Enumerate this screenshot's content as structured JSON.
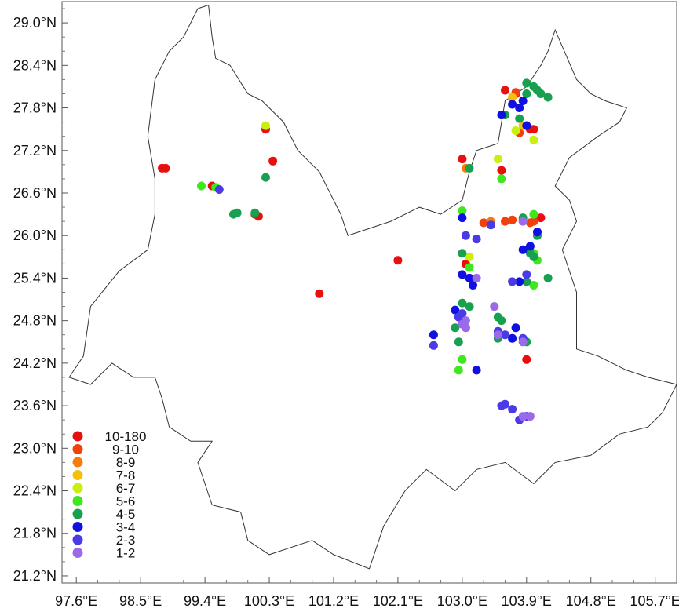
{
  "chart_data": {
    "type": "scatter",
    "title": "",
    "xlabel": "",
    "ylabel": "",
    "xlim": [
      97.4,
      106.0
    ],
    "ylim": [
      21.1,
      29.3
    ],
    "grid": false,
    "legend_position": "bottom-left",
    "x_ticks": [
      {
        "value": 97.6,
        "label": "97.6°E"
      },
      {
        "value": 98.5,
        "label": "98.5°E"
      },
      {
        "value": 99.4,
        "label": "99.4°E"
      },
      {
        "value": 100.3,
        "label": "100.3°E"
      },
      {
        "value": 101.2,
        "label": "101.2°E"
      },
      {
        "value": 102.1,
        "label": "102.1°E"
      },
      {
        "value": 103.0,
        "label": "103.0°E"
      },
      {
        "value": 103.9,
        "label": "103.9°E"
      },
      {
        "value": 104.8,
        "label": "104.8°E"
      },
      {
        "value": 105.7,
        "label": "105.7°E"
      }
    ],
    "y_ticks": [
      {
        "value": 29.0,
        "label": "29.0°N"
      },
      {
        "value": 28.4,
        "label": "28.4°N"
      },
      {
        "value": 27.8,
        "label": "27.8°N"
      },
      {
        "value": 27.2,
        "label": "27.2°N"
      },
      {
        "value": 26.6,
        "label": "26.6°N"
      },
      {
        "value": 26.0,
        "label": "26.0°N"
      },
      {
        "value": 25.4,
        "label": "25.4°N"
      },
      {
        "value": 24.8,
        "label": "24.8°N"
      },
      {
        "value": 24.2,
        "label": "24.2°N"
      },
      {
        "value": 23.6,
        "label": "23.6°N"
      },
      {
        "value": 23.0,
        "label": "23.0°N"
      },
      {
        "value": 22.4,
        "label": "22.4°N"
      },
      {
        "value": 21.8,
        "label": "21.8°N"
      },
      {
        "value": 21.2,
        "label": "21.2°N"
      }
    ],
    "boundary": [
      [
        97.5,
        24.0
      ],
      [
        97.7,
        24.3
      ],
      [
        97.8,
        25.0
      ],
      [
        98.2,
        25.5
      ],
      [
        98.6,
        25.8
      ],
      [
        98.7,
        26.3
      ],
      [
        98.7,
        26.8
      ],
      [
        98.6,
        27.4
      ],
      [
        98.7,
        28.2
      ],
      [
        98.9,
        28.6
      ],
      [
        99.1,
        28.8
      ],
      [
        99.3,
        29.2
      ],
      [
        99.45,
        29.25
      ],
      [
        99.5,
        28.8
      ],
      [
        99.55,
        28.5
      ],
      [
        99.75,
        28.4
      ],
      [
        100.0,
        28.0
      ],
      [
        100.2,
        27.9
      ],
      [
        100.5,
        27.6
      ],
      [
        100.7,
        27.2
      ],
      [
        101.0,
        26.9
      ],
      [
        101.3,
        26.3
      ],
      [
        101.4,
        26.0
      ],
      [
        102.0,
        26.2
      ],
      [
        102.4,
        26.4
      ],
      [
        102.7,
        26.3
      ],
      [
        103.0,
        26.5
      ],
      [
        103.1,
        26.9
      ],
      [
        103.2,
        27.2
      ],
      [
        103.5,
        27.3
      ],
      [
        103.6,
        27.9
      ],
      [
        103.9,
        28.1
      ],
      [
        104.1,
        28.4
      ],
      [
        104.2,
        28.6
      ],
      [
        104.3,
        28.9
      ],
      [
        104.6,
        28.2
      ],
      [
        104.8,
        28.0
      ],
      [
        105.0,
        27.9
      ],
      [
        105.3,
        27.8
      ],
      [
        105.2,
        27.6
      ],
      [
        104.9,
        27.4
      ],
      [
        104.5,
        27.1
      ],
      [
        104.3,
        26.7
      ],
      [
        104.5,
        26.5
      ],
      [
        104.6,
        26.2
      ],
      [
        104.4,
        25.8
      ],
      [
        104.5,
        25.5
      ],
      [
        104.6,
        25.2
      ],
      [
        104.6,
        24.8
      ],
      [
        104.6,
        24.4
      ],
      [
        104.9,
        24.3
      ],
      [
        105.3,
        24.1
      ],
      [
        105.6,
        24.0
      ],
      [
        106.0,
        23.9
      ],
      [
        105.8,
        23.5
      ],
      [
        105.6,
        23.3
      ],
      [
        105.2,
        23.2
      ],
      [
        104.8,
        22.9
      ],
      [
        104.3,
        22.8
      ],
      [
        104.0,
        22.5
      ],
      [
        103.6,
        22.8
      ],
      [
        103.2,
        22.7
      ],
      [
        102.9,
        22.4
      ],
      [
        102.5,
        22.7
      ],
      [
        102.2,
        22.4
      ],
      [
        101.9,
        21.9
      ],
      [
        101.8,
        21.6
      ],
      [
        101.7,
        21.3
      ],
      [
        101.2,
        21.5
      ],
      [
        100.9,
        21.7
      ],
      [
        100.6,
        21.6
      ],
      [
        100.3,
        21.5
      ],
      [
        100.0,
        21.7
      ],
      [
        99.9,
        22.1
      ],
      [
        99.5,
        22.2
      ],
      [
        99.4,
        22.5
      ],
      [
        99.3,
        22.8
      ],
      [
        99.5,
        23.1
      ],
      [
        99.2,
        23.1
      ],
      [
        98.9,
        23.3
      ],
      [
        98.8,
        23.7
      ],
      [
        98.7,
        24.0
      ],
      [
        98.4,
        24.0
      ],
      [
        98.1,
        24.2
      ],
      [
        97.8,
        23.9
      ],
      [
        97.5,
        24.0
      ]
    ],
    "series": [
      {
        "name": "10-180",
        "color": "#e8100e",
        "points": [
          [
            98.8,
            26.95
          ],
          [
            98.85,
            26.95
          ],
          [
            100.25,
            27.5
          ],
          [
            100.35,
            27.05
          ],
          [
            99.5,
            26.7
          ],
          [
            100.1,
            26.3
          ],
          [
            100.15,
            26.27
          ],
          [
            101.0,
            25.18
          ],
          [
            102.1,
            25.65
          ],
          [
            103.0,
            27.08
          ],
          [
            103.55,
            26.92
          ],
          [
            103.95,
            27.5
          ],
          [
            103.9,
            27.55
          ],
          [
            104.0,
            27.5
          ],
          [
            103.6,
            28.05
          ],
          [
            103.75,
            28.0
          ],
          [
            103.05,
            25.6
          ],
          [
            103.9,
            24.25
          ],
          [
            104.1,
            26.25
          ]
        ]
      },
      {
        "name": "9-10",
        "color": "#f2400b",
        "points": [
          [
            103.75,
            28.02
          ],
          [
            103.8,
            27.45
          ],
          [
            103.6,
            26.2
          ],
          [
            103.7,
            26.22
          ],
          [
            103.3,
            26.18
          ],
          [
            104.0,
            26.2
          ],
          [
            103.95,
            26.18
          ]
        ]
      },
      {
        "name": "8-9",
        "color": "#f57c0a",
        "points": [
          [
            103.4,
            26.2
          ],
          [
            103.85,
            26.22
          ],
          [
            103.05,
            26.95
          ]
        ]
      },
      {
        "name": "7-8",
        "color": "#f5c00a",
        "points": [
          [
            103.7,
            27.95
          ],
          [
            103.85,
            27.55
          ]
        ]
      },
      {
        "name": "6-7",
        "color": "#c8f00d",
        "points": [
          [
            100.25,
            27.55
          ],
          [
            103.5,
            27.08
          ],
          [
            104.0,
            27.35
          ],
          [
            103.75,
            27.48
          ],
          [
            103.1,
            25.7
          ]
        ]
      },
      {
        "name": "5-6",
        "color": "#3ee81e",
        "points": [
          [
            99.35,
            26.7
          ],
          [
            99.55,
            26.68
          ],
          [
            103.55,
            26.8
          ],
          [
            103.0,
            26.35
          ],
          [
            104.0,
            26.3
          ],
          [
            103.1,
            25.55
          ],
          [
            104.0,
            25.75
          ],
          [
            104.05,
            25.65
          ],
          [
            103.0,
            24.25
          ],
          [
            102.95,
            24.1
          ],
          [
            104.0,
            25.3
          ]
        ]
      },
      {
        "name": "4-5",
        "color": "#16a050",
        "points": [
          [
            99.8,
            26.3
          ],
          [
            99.85,
            26.32
          ],
          [
            100.1,
            26.32
          ],
          [
            100.25,
            26.82
          ],
          [
            103.1,
            26.95
          ],
          [
            103.6,
            27.7
          ],
          [
            103.8,
            27.65
          ],
          [
            103.9,
            28.15
          ],
          [
            104.0,
            28.1
          ],
          [
            104.05,
            28.05
          ],
          [
            103.9,
            28.0
          ],
          [
            104.1,
            28.0
          ],
          [
            104.2,
            27.95
          ],
          [
            103.85,
            26.25
          ],
          [
            104.05,
            26.0
          ],
          [
            103.95,
            25.75
          ],
          [
            104.0,
            25.7
          ],
          [
            104.2,
            25.4
          ],
          [
            103.9,
            25.35
          ],
          [
            103.0,
            25.75
          ],
          [
            103.0,
            25.05
          ],
          [
            103.1,
            25.0
          ],
          [
            102.9,
            24.7
          ],
          [
            102.95,
            24.5
          ],
          [
            103.5,
            24.85
          ],
          [
            103.55,
            24.8
          ],
          [
            103.5,
            24.55
          ],
          [
            103.9,
            24.5
          ]
        ]
      },
      {
        "name": "3-4",
        "color": "#1010e0",
        "points": [
          [
            103.7,
            27.85
          ],
          [
            103.8,
            27.8
          ],
          [
            103.85,
            27.9
          ],
          [
            103.9,
            27.55
          ],
          [
            103.55,
            27.7
          ],
          [
            103.0,
            26.25
          ],
          [
            104.05,
            26.05
          ],
          [
            103.95,
            25.85
          ],
          [
            103.85,
            25.8
          ],
          [
            103.0,
            25.45
          ],
          [
            103.1,
            25.4
          ],
          [
            103.15,
            25.3
          ],
          [
            102.9,
            24.95
          ],
          [
            103.2,
            24.1
          ],
          [
            102.6,
            24.6
          ],
          [
            103.7,
            24.55
          ],
          [
            103.75,
            24.7
          ],
          [
            103.8,
            25.35
          ]
        ]
      },
      {
        "name": "2-3",
        "color": "#4a3ae8",
        "points": [
          [
            99.6,
            26.65
          ],
          [
            103.05,
            26.0
          ],
          [
            103.2,
            25.95
          ],
          [
            103.4,
            26.15
          ],
          [
            103.7,
            25.35
          ],
          [
            103.9,
            25.45
          ],
          [
            102.95,
            24.85
          ],
          [
            103.0,
            24.9
          ],
          [
            102.6,
            24.45
          ],
          [
            103.5,
            24.65
          ],
          [
            103.6,
            24.6
          ],
          [
            103.85,
            24.55
          ],
          [
            103.55,
            23.6
          ],
          [
            103.6,
            23.62
          ],
          [
            103.7,
            23.55
          ],
          [
            103.8,
            23.4
          ],
          [
            103.9,
            23.45
          ]
        ]
      },
      {
        "name": "1-2",
        "color": "#9a6ae8",
        "points": [
          [
            103.0,
            24.75
          ],
          [
            103.05,
            24.8
          ],
          [
            103.05,
            24.7
          ],
          [
            103.45,
            25.0
          ],
          [
            103.5,
            24.6
          ],
          [
            103.85,
            26.2
          ],
          [
            103.2,
            25.4
          ],
          [
            103.85,
            23.45
          ],
          [
            103.95,
            23.45
          ],
          [
            103.85,
            24.5
          ]
        ]
      }
    ]
  }
}
